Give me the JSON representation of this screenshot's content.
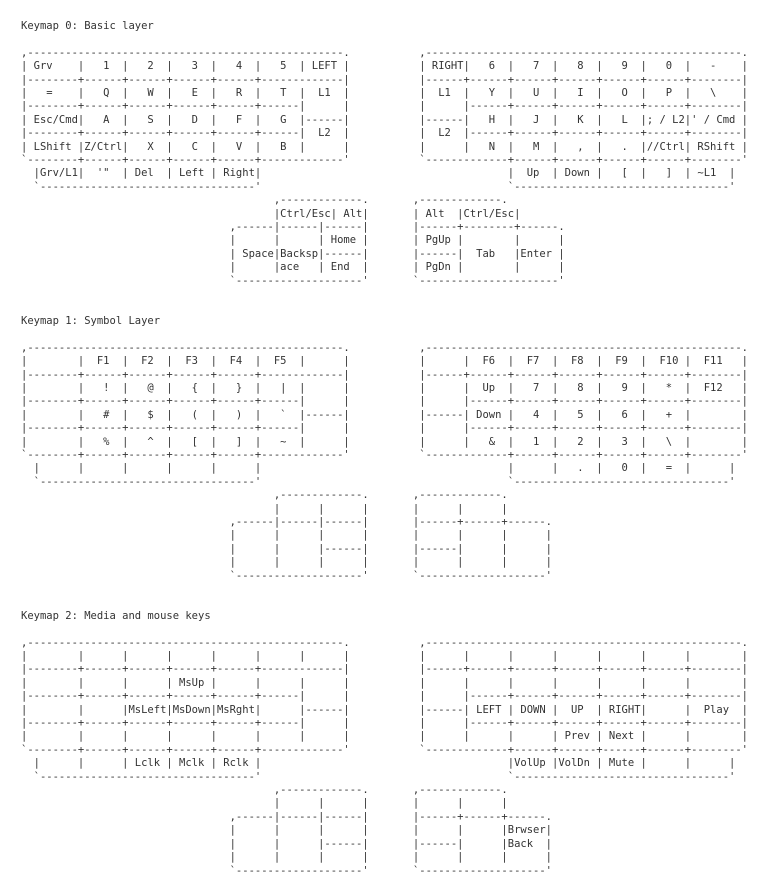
{
  "page": {
    "background": "#ffffff",
    "text_color": "#333333",
    "document_type": "keymap-readme"
  },
  "keymaps": [
    {
      "title": "Keymap 0: Basic layer",
      "lines": [
        ",--------------------------------------------------.           ,--------------------------------------------------.",
        "| Grv    |   1  |   2  |   3  |   4  |   5  | LEFT |           | RIGHT|   6  |   7  |   8  |   9  |   0  |   -    |",
        "|--------+------+------+------+------+-------------|           |------+------+------+------+------+------+--------|",
        "|   =    |   Q  |   W  |   E  |   R  |   T  |  L1  |           |  L1  |   Y  |   U  |   I  |   O  |   P  |   \\    |",
        "|--------+------+------+------+------+------|      |           |      |------+------+------+------+------+--------|",
        "| Esc/Cmd|   A  |   S  |   D  |   F  |   G  |------|           |------|   H  |   J  |   K  |   L  |; / L2|' / Cmd |",
        "|--------+------+------+------+------+------|  L2  |           |  L2  |------+------+------+------+------+--------|",
        "| LShift |Z/Ctrl|   X  |   C  |   V  |   B  |      |           |      |   N  |   M  |   ,  |   .  |//Ctrl| RShift |",
        "`--------+------+------+------+------+-------------'           `-------------+------+------+------+------+--------'",
        "  |Grv/L1|  '\"  | Del  | Left | Right|                                       |  Up  | Down |   [  |   ]  | ~L1  |",
        "  `----------------------------------'                                       `----------------------------------'",
        "                                        ,-------------.       ,-------------.",
        "                                        |Ctrl/Esc| Alt|       | Alt  |Ctrl/Esc|",
        "                                 ,------|------|------|       |------+--------+------.",
        "                                 |      |      | Home |       | PgUp |        |      |",
        "                                 | Space|Backsp|------|       |------|  Tab   |Enter |",
        "                                 |      |ace   | End  |       | PgDn |        |      |",
        "                                 `--------------------'       `----------------------'"
      ]
    },
    {
      "title": "Keymap 1: Symbol Layer",
      "lines": [
        ",--------------------------------------------------.           ,--------------------------------------------------.",
        "|        |  F1  |  F2  |  F3  |  F4  |  F5  |      |           |      |  F6  |  F7  |  F8  |  F9  |  F10 |  F11   |",
        "|--------+------+------+------+------+-------------|           |------+------+------+------+------+------+--------|",
        "|        |   !  |   @  |   {  |   }  |   |  |      |           |      |  Up  |   7  |   8  |   9  |   *  |  F12   |",
        "|--------+------+------+------+------+------|      |           |      |------+------+------+------+------+--------|",
        "|        |   #  |   $  |   (  |   )  |   `  |------|           |------| Down |   4  |   5  |   6  |   +  |        |",
        "|--------+------+------+------+------+------|      |           |      |------+------+------+------+------+--------|",
        "|        |   %  |   ^  |   [  |   ]  |   ~  |      |           |      |   &  |   1  |   2  |   3  |   \\  |        |",
        "`--------+------+------+------+------+-------------'           `-------------+------+------+------+------+--------'",
        "  |      |      |      |      |      |                                       |      |   .  |   0  |   =  |      |",
        "  `----------------------------------'                                       `----------------------------------'",
        "                                        ,-------------.       ,-------------.",
        "                                        |      |      |       |      |      |",
        "                                 ,------|------|------|       |------+------+------.",
        "                                 |      |      |      |       |      |      |      |",
        "                                 |      |      |------|       |------|      |      |",
        "                                 |      |      |      |       |      |      |      |",
        "                                 `--------------------'       `--------------------'"
      ]
    },
    {
      "title": "Keymap 2: Media and mouse keys",
      "lines": [
        ",--------------------------------------------------.           ,--------------------------------------------------.",
        "|        |      |      |      |      |      |      |           |      |      |      |      |      |      |        |",
        "|--------+------+------+------+------+-------------|           |------+------+------+------+------+------+--------|",
        "|        |      |      | MsUp |      |      |      |           |      |      |      |      |      |      |        |",
        "|--------+------+------+------+------+------|      |           |      |------+------+------+------+------+--------|",
        "|        |      |MsLeft|MsDown|MsRght|      |------|           |------| LEFT | DOWN |  UP  | RIGHT|      |  Play  |",
        "|--------+------+------+------+------+------|      |           |      |------+------+------+------+------+--------|",
        "|        |      |      |      |      |      |      |           |      |      |      | Prev | Next |      |        |",
        "`--------+------+------+------+------+-------------'           `-------------+------+------+------+------+--------'",
        "  |      |      | Lclk | Mclk | Rclk |                                       |VolUp |VolDn | Mute |      |      |",
        "  `----------------------------------'                                       `----------------------------------'",
        "                                        ,-------------.       ,-------------.",
        "                                        |      |      |       |      |      |",
        "                                 ,------|------|------|       |------+------+------.",
        "                                 |      |      |      |       |      |      |Brwser|",
        "                                 |      |      |------|       |------|      |Back  |",
        "                                 |      |      |      |       |      |      |      |",
        "                                 `--------------------'       `--------------------'"
      ]
    }
  ]
}
